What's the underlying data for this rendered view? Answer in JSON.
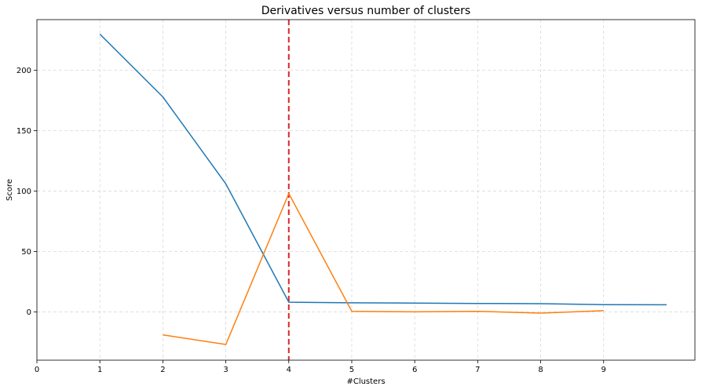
{
  "chart_data": {
    "type": "line",
    "title": "Derivatives versus number of clusters",
    "xlabel": "#Clusters",
    "ylabel": "Score",
    "xlim": [
      0,
      10.45
    ],
    "ylim": [
      -40,
      242
    ],
    "xticks": [
      0,
      1,
      2,
      3,
      4,
      5,
      6,
      7,
      8,
      9
    ],
    "xtick_labels": [
      "0",
      "1",
      "2",
      "3",
      "4",
      "5",
      "6",
      "7",
      "8",
      "9"
    ],
    "yticks": [
      0,
      50,
      100,
      150,
      200
    ],
    "ytick_labels": [
      "0",
      "50",
      "100",
      "150",
      "200"
    ],
    "grid": true,
    "series": [
      {
        "color": "#1f77b4",
        "x": [
          1,
          2,
          3,
          4,
          5,
          6,
          7,
          8,
          9,
          10
        ],
        "y": [
          230,
          178,
          106,
          8,
          7.5,
          7.3,
          7,
          6.8,
          6,
          5.9
        ]
      },
      {
        "color": "#ff7f0e",
        "x": [
          2,
          3,
          4,
          5,
          6,
          7,
          8,
          9
        ],
        "y": [
          -19,
          -27,
          98,
          0.5,
          0,
          0.5,
          -1,
          1
        ]
      }
    ],
    "vline": {
      "x": 4,
      "color": "#d62728",
      "style": "dashed"
    }
  }
}
